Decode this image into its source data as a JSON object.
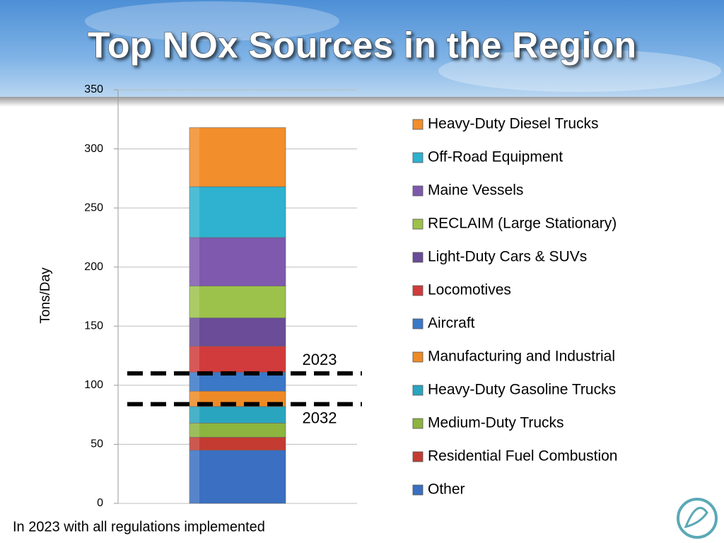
{
  "chart_data": {
    "type": "stacked-bar",
    "title": "Top NOx Sources in the Region",
    "ylabel": "Tons/Day",
    "footnote": "In 2023 with all regulations implemented",
    "ylim": [
      0,
      350
    ],
    "yticks": [
      0,
      50,
      100,
      150,
      200,
      250,
      300,
      350
    ],
    "grid": true,
    "legend": "right",
    "series": [
      {
        "name": "Other",
        "color": "#3a6fc1",
        "values": [
          45
        ]
      },
      {
        "name": "Residential Fuel Combustion",
        "color": "#c43b32",
        "values": [
          11
        ]
      },
      {
        "name": "Medium-Duty Trucks",
        "color": "#8cb43f",
        "values": [
          12
        ]
      },
      {
        "name": "Heavy-Duty Gasoline Trucks",
        "color": "#2aa5bf",
        "values": [
          14
        ]
      },
      {
        "name": "Manufacturing and Industrial",
        "color": "#ee8a25",
        "values": [
          13
        ]
      },
      {
        "name": "Aircraft",
        "color": "#3b78c8",
        "values": [
          16
        ]
      },
      {
        "name": "Locomotives",
        "color": "#d13b3b",
        "values": [
          22
        ]
      },
      {
        "name": "Light-Duty Cars & SUVs",
        "color": "#6a4c98",
        "values": [
          24
        ]
      },
      {
        "name": "RECLAIM (Large Stationary)",
        "color": "#9cc24b",
        "values": [
          27
        ]
      },
      {
        "name": "Maine Vessels",
        "color": "#7e59ae",
        "values": [
          41
        ]
      },
      {
        "name": "Off-Road Equipment",
        "color": "#2eb2cf",
        "values": [
          43
        ]
      },
      {
        "name": "Heavy-Duty Diesel Trucks",
        "color": "#f28e2b",
        "values": [
          50
        ]
      }
    ],
    "reference_lines": [
      {
        "label": "2023",
        "value": 110
      },
      {
        "label": "2032",
        "value": 84
      }
    ]
  }
}
